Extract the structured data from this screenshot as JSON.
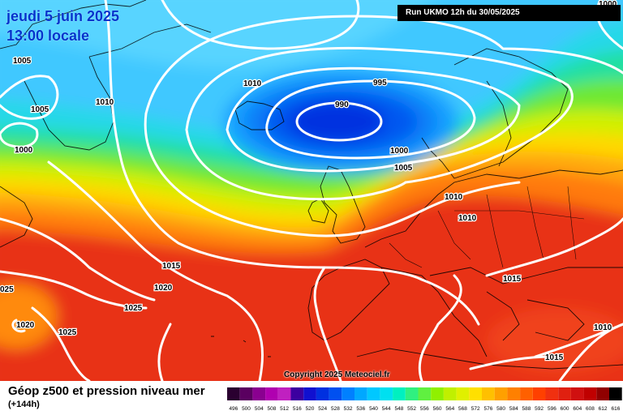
{
  "header": {
    "date_line": "jeudi 5 juin 2025",
    "time_line": "13:00 locale",
    "run_info": "Run UKMO 12h du 30/05/2025"
  },
  "footer": {
    "title": "Géop z500 et pression niveau mer",
    "subtitle": "(+144h)",
    "copyright": "Copyright 2025 Meteociel.fr"
  },
  "isobar_labels": [
    {
      "text": "1005",
      "pos": [
        16,
        74
      ]
    },
    {
      "text": "1005",
      "pos": [
        38,
        134
      ]
    },
    {
      "text": "1000",
      "pos": [
        18,
        184
      ]
    },
    {
      "text": "1010",
      "pos": [
        118,
        125
      ]
    },
    {
      "text": "1010",
      "pos": [
        300,
        102
      ]
    },
    {
      "text": "995",
      "pos": [
        460,
        101
      ]
    },
    {
      "text": "990",
      "pos": [
        413,
        128
      ]
    },
    {
      "text": "1000",
      "pos": [
        481,
        185
      ]
    },
    {
      "text": "1005",
      "pos": [
        486,
        206
      ]
    },
    {
      "text": "1010",
      "pos": [
        548,
        242
      ]
    },
    {
      "text": "1010",
      "pos": [
        565,
        268
      ]
    },
    {
      "text": "1015",
      "pos": [
        200,
        327
      ]
    },
    {
      "text": "1020",
      "pos": [
        190,
        354
      ]
    },
    {
      "text": "1025",
      "pos": [
        153,
        379
      ]
    },
    {
      "text": "1020",
      "pos": [
        20,
        400
      ]
    },
    {
      "text": "1025",
      "pos": [
        72,
        409
      ]
    },
    {
      "text": "025",
      "pos": [
        0,
        356
      ]
    },
    {
      "text": "1015",
      "pos": [
        620,
        343
      ]
    },
    {
      "text": "1010",
      "pos": [
        732,
        403
      ]
    },
    {
      "text": "1015",
      "pos": [
        672,
        440
      ]
    },
    {
      "text": "1000",
      "pos": [
        738,
        4
      ]
    }
  ],
  "scale": {
    "ticks": [
      "496",
      "500",
      "504",
      "508",
      "512",
      "516",
      "520",
      "524",
      "528",
      "532",
      "536",
      "540",
      "544",
      "548",
      "552",
      "556",
      "560",
      "564",
      "568",
      "572",
      "576",
      "580",
      "584",
      "588",
      "592",
      "596",
      "600",
      "604",
      "608",
      "612",
      "616"
    ],
    "colors": [
      "#2a0030",
      "#5a0060",
      "#8a0090",
      "#b000b0",
      "#c020c0",
      "#3c00a0",
      "#1010d0",
      "#0030e0",
      "#0050f0",
      "#0080ff",
      "#00a8ff",
      "#00c8ff",
      "#00e0f0",
      "#00f0c0",
      "#30f080",
      "#60f040",
      "#90f000",
      "#c0f000",
      "#e0f000",
      "#ffe000",
      "#ffc000",
      "#ffa000",
      "#ff8000",
      "#ff6000",
      "#ff4000",
      "#f03010",
      "#e02010",
      "#d01010",
      "#c00000",
      "#900000",
      "#000000"
    ]
  }
}
